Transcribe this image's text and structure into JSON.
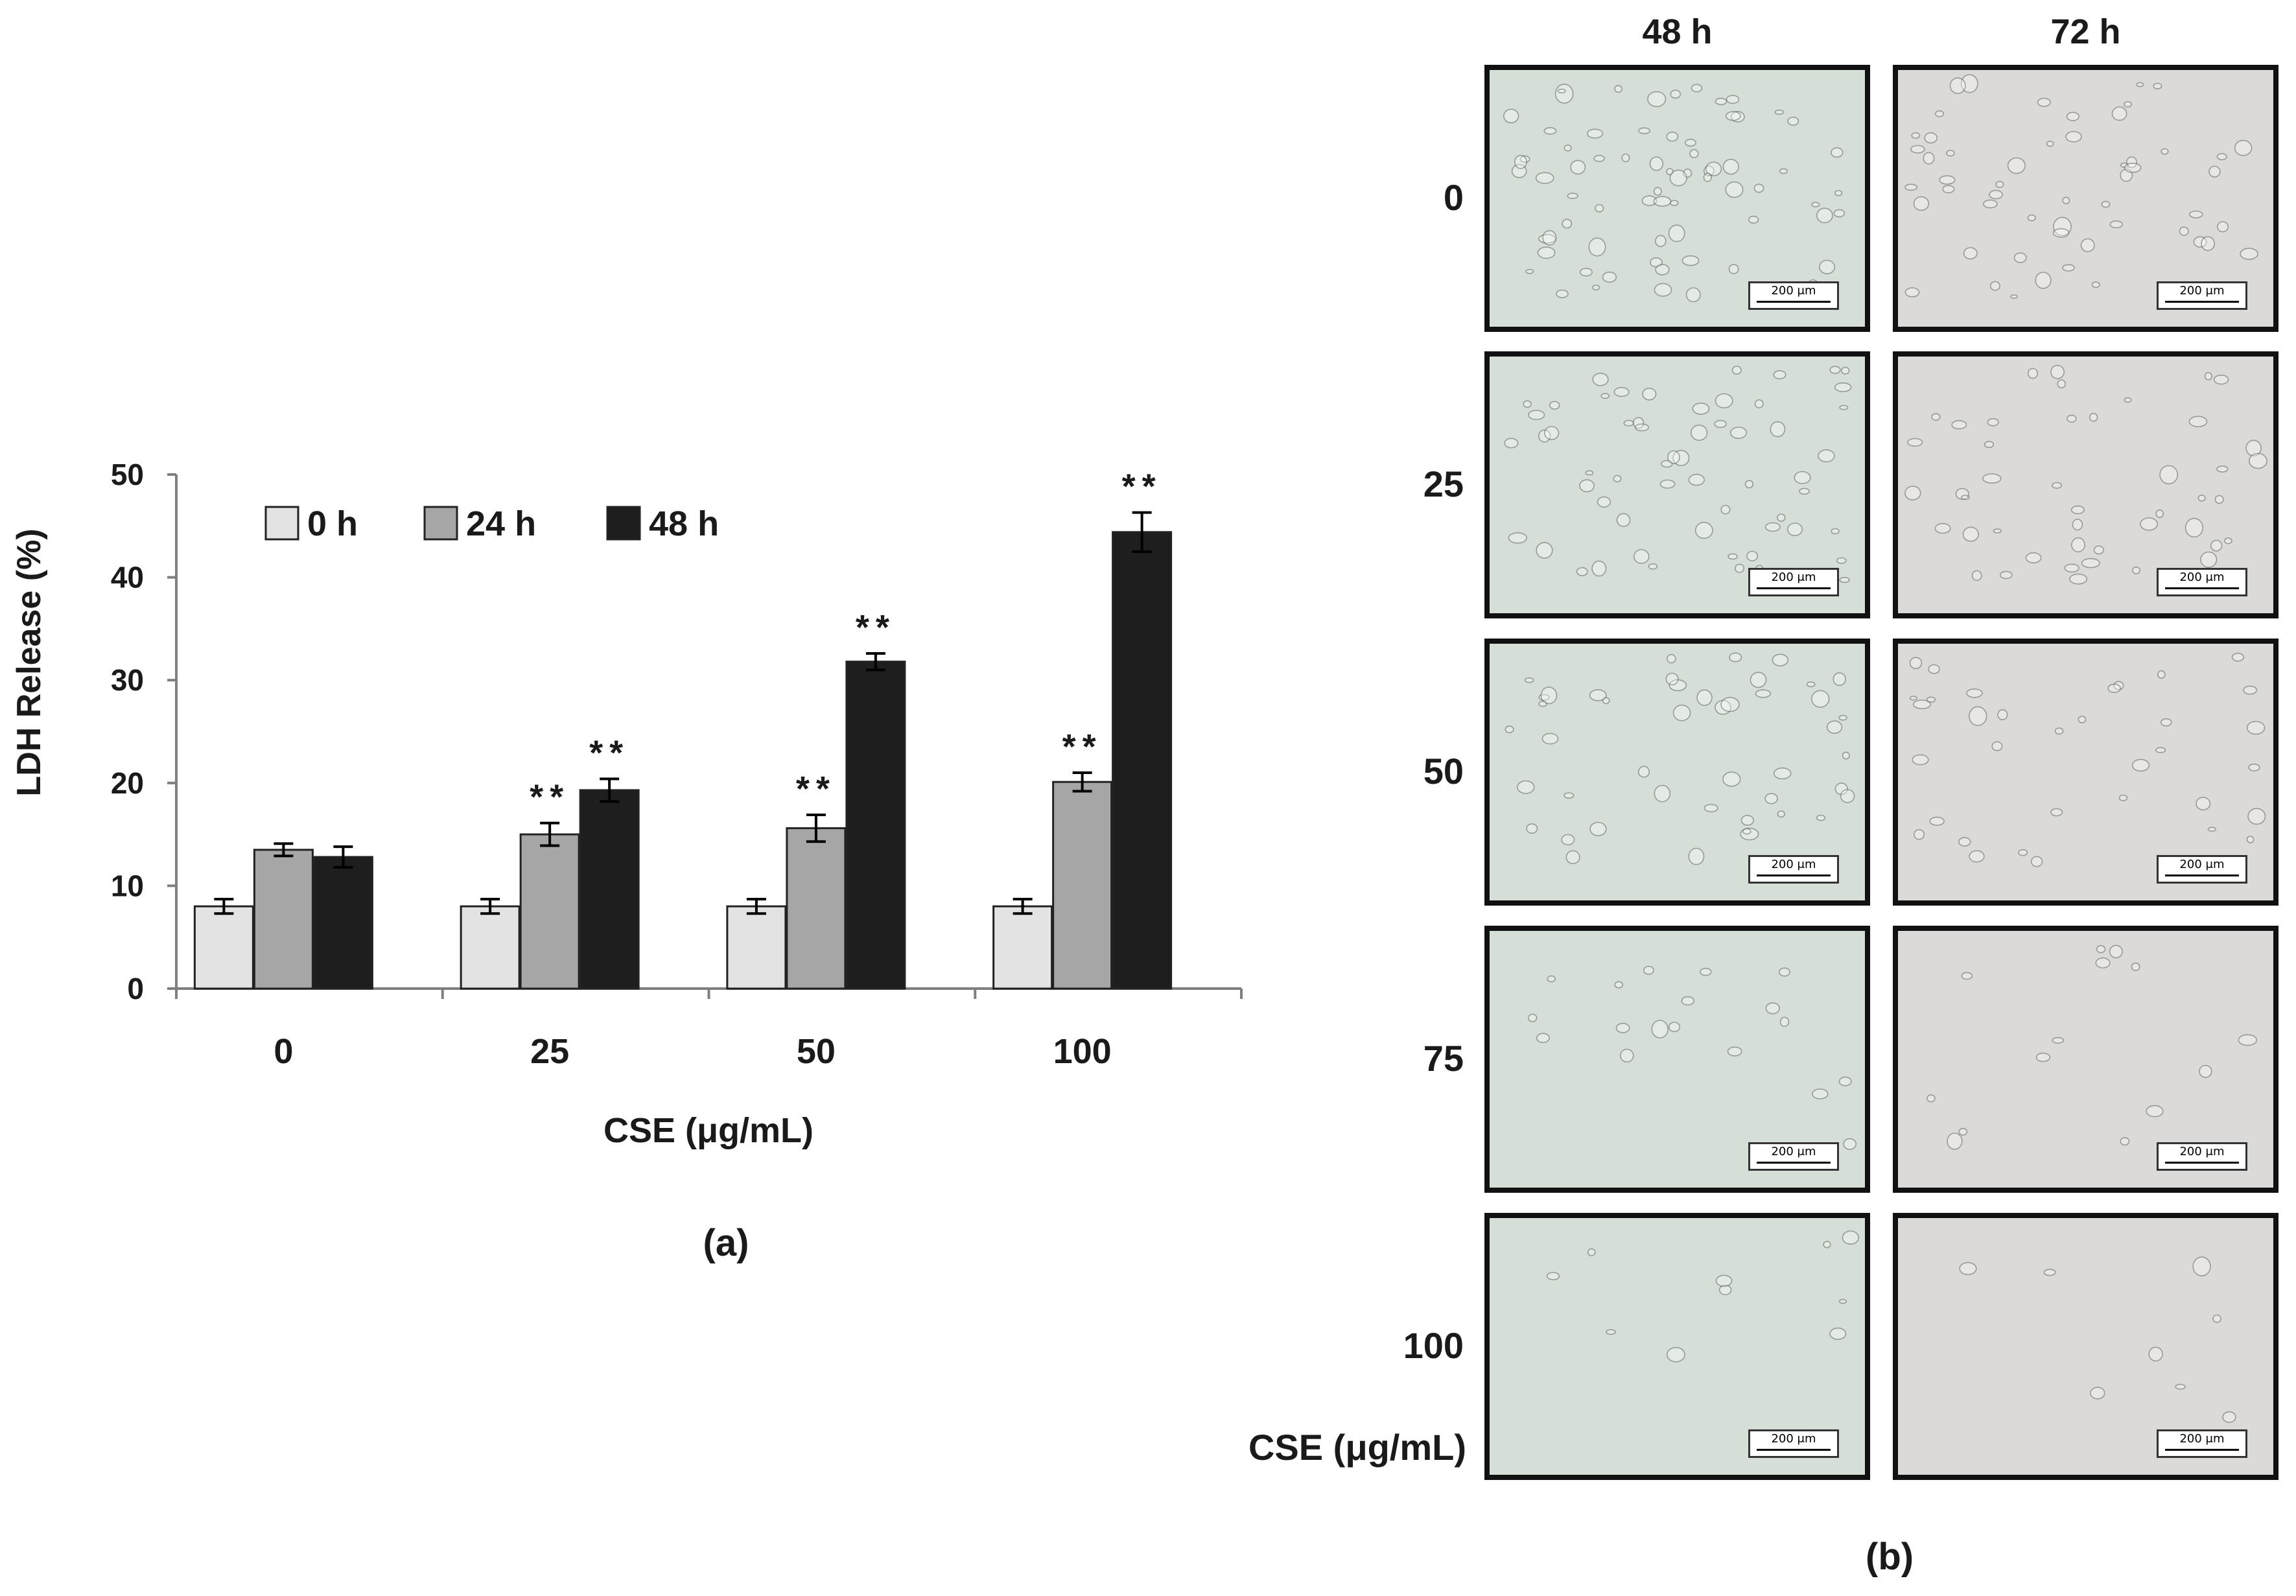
{
  "chart_data": {
    "type": "bar",
    "ylabel": "LDH Release (%)",
    "xlabel": "CSE (μg/mL)",
    "caption": "(a)",
    "categories": [
      "0",
      "25",
      "50",
      "100"
    ],
    "ylim": [
      0,
      50
    ],
    "yticks": [
      0,
      10,
      20,
      30,
      40,
      50
    ],
    "legend_position": "top-left",
    "grid": false,
    "series": [
      {
        "name": "0 h",
        "color": "#e3e3e3",
        "values": [
          8.0,
          8.0,
          8.0,
          8.0
        ],
        "errors": [
          0.7,
          0.7,
          0.7,
          0.7
        ],
        "significance": [
          "",
          "",
          "",
          ""
        ]
      },
      {
        "name": "24 h",
        "color": "#a6a6a6",
        "values": [
          13.5,
          15.0,
          15.6,
          20.1
        ],
        "errors": [
          0.6,
          1.1,
          1.3,
          0.9
        ],
        "significance": [
          "",
          "**",
          "**",
          "**"
        ]
      },
      {
        "name": "48 h",
        "color": "#1e1e1e",
        "values": [
          12.8,
          19.3,
          31.8,
          44.4
        ],
        "errors": [
          1.0,
          1.1,
          0.8,
          1.9
        ],
        "significance": [
          "",
          "**",
          "**",
          "**"
        ]
      }
    ]
  },
  "micrographs": {
    "columns": [
      "48 h",
      "72 h"
    ],
    "rows": [
      "0",
      "25",
      "50",
      "75",
      "100"
    ],
    "axis_label": "CSE (μg/mL)",
    "scale_bar": "200 μm",
    "caption": "(b)"
  }
}
